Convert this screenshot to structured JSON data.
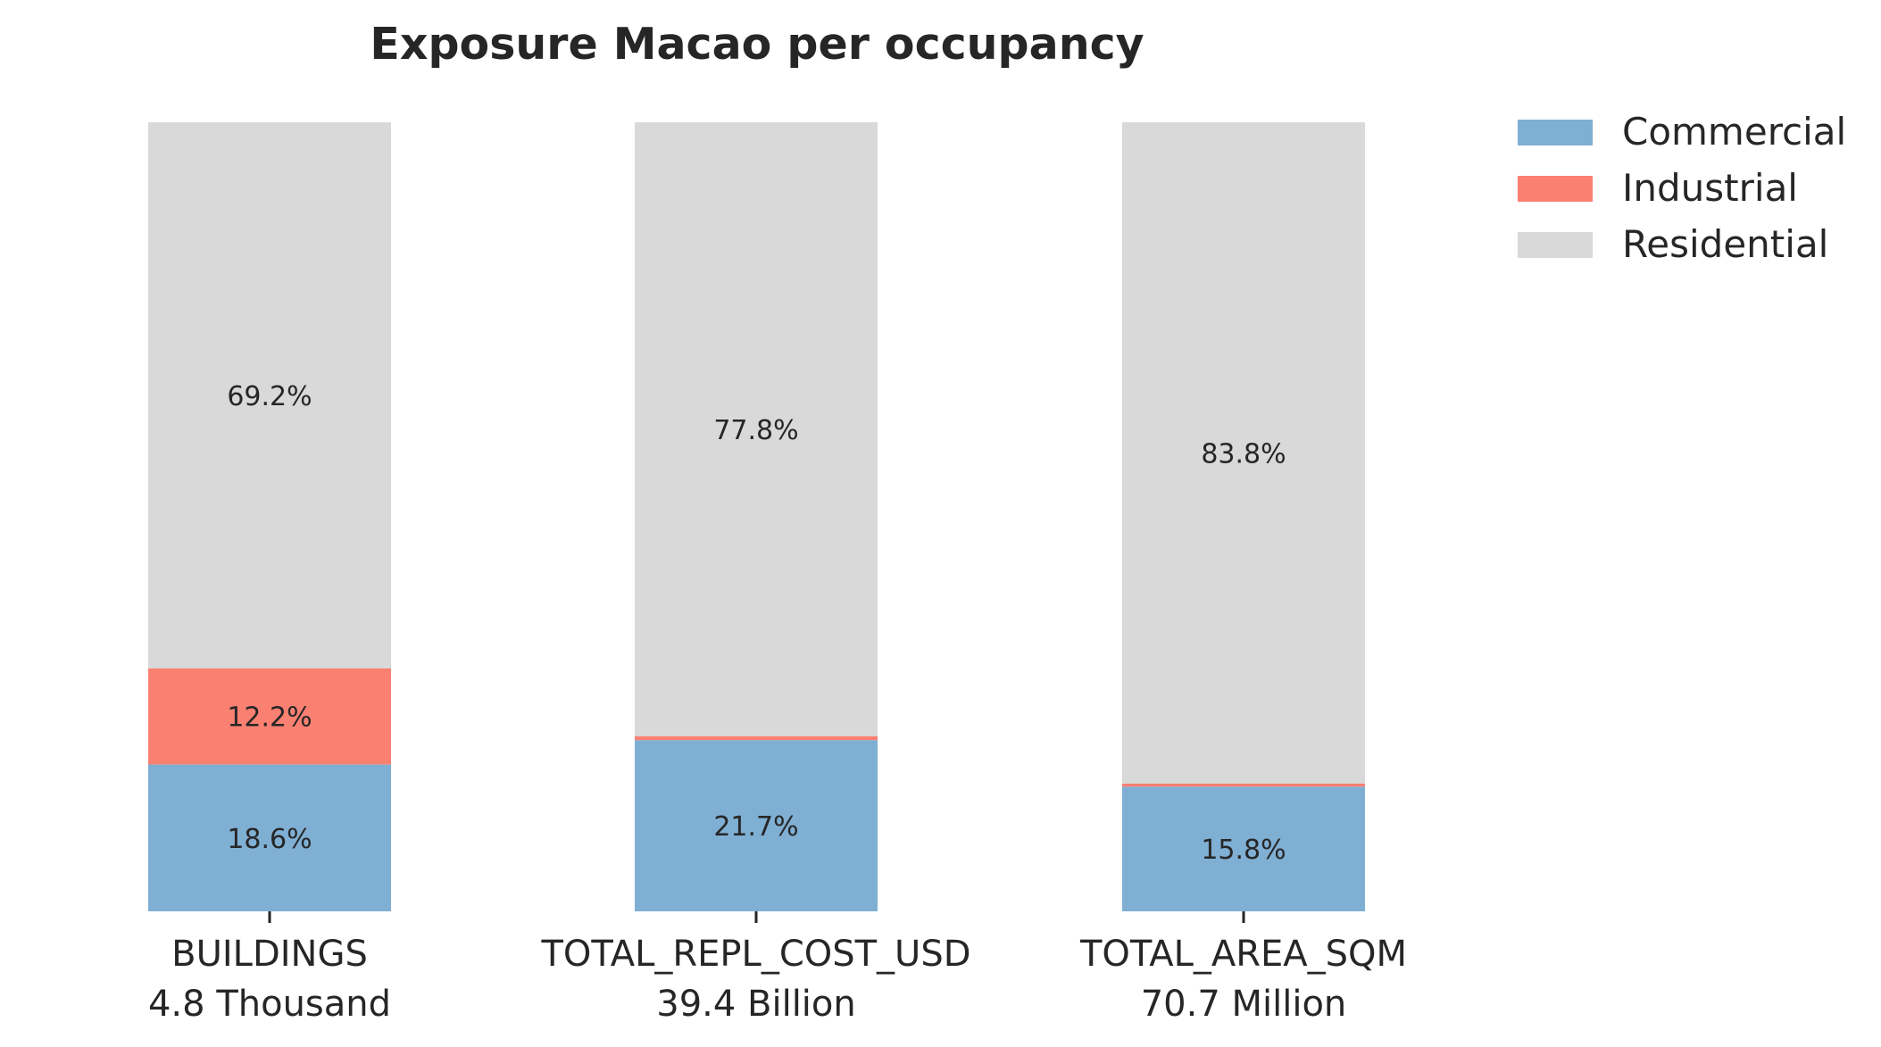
{
  "chart_data": {
    "type": "bar",
    "stacked": true,
    "normalized_percent": true,
    "title": "Exposure Macao per occupancy",
    "categories": [
      "BUILDINGS",
      "TOTAL_REPL_COST_USD",
      "TOTAL_AREA_SQM"
    ],
    "category_totals": [
      "4.8 Thousand",
      "39.4 Billion",
      "70.7 Million"
    ],
    "xlabel": "",
    "ylabel": "",
    "ylim": [
      0,
      100
    ],
    "grid": false,
    "legend_position": "top-right",
    "series": [
      {
        "name": "Commercial",
        "color": "#7fafd3",
        "values": [
          18.6,
          21.7,
          15.8
        ],
        "labels": [
          "18.6%",
          "21.7%",
          "15.8%"
        ]
      },
      {
        "name": "Industrial",
        "color": "#fa8072",
        "values": [
          12.2,
          0.5,
          0.4
        ],
        "labels": [
          "12.2%",
          "",
          ""
        ]
      },
      {
        "name": "Residential",
        "color": "#d9d9d9",
        "values": [
          69.2,
          77.8,
          83.8
        ],
        "labels": [
          "69.2%",
          "77.8%",
          "83.8%"
        ]
      }
    ]
  }
}
